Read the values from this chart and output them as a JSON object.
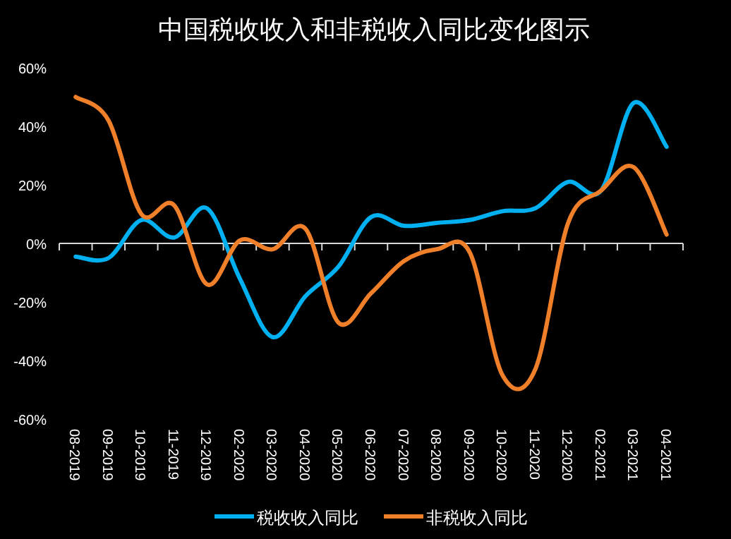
{
  "chart_data": {
    "type": "line",
    "title": "中国税收收入和非税收入同比变化图示",
    "categories": [
      "08-2019",
      "09-2019",
      "10-2019",
      "11-2019",
      "12-2019",
      "02-2020",
      "03-2020",
      "04-2020",
      "05-2020",
      "06-2020",
      "07-2020",
      "08-2020",
      "09-2020",
      "10-2020",
      "11-2020",
      "12-2020",
      "02-2021",
      "03-2021",
      "04-2021"
    ],
    "series": [
      {
        "name": "税收收入同比",
        "color": "#00b0f0",
        "values": [
          -4.5,
          -5,
          8,
          2,
          12,
          -12,
          -32,
          -18,
          -8,
          9,
          6,
          7,
          8,
          11,
          12,
          21,
          18,
          48,
          33
        ]
      },
      {
        "name": "非税收入同比",
        "color": "#f07f29",
        "values": [
          50,
          42,
          10,
          13,
          -14,
          1,
          -2,
          5,
          -27,
          -17,
          -6,
          -2,
          -3,
          -45,
          -43,
          7,
          18,
          26,
          3
        ]
      }
    ],
    "ylim": [
      -60,
      60
    ],
    "yticks": [
      {
        "value": -60,
        "label": "-60%"
      },
      {
        "value": -40,
        "label": "-40%"
      },
      {
        "value": -20,
        "label": "-20%"
      },
      {
        "value": 0,
        "label": "0%"
      },
      {
        "value": 20,
        "label": "20%"
      },
      {
        "value": 40,
        "label": "40%"
      },
      {
        "value": 60,
        "label": "60%"
      }
    ],
    "legend": "bottom",
    "marker": "none",
    "line_style": "solid"
  }
}
